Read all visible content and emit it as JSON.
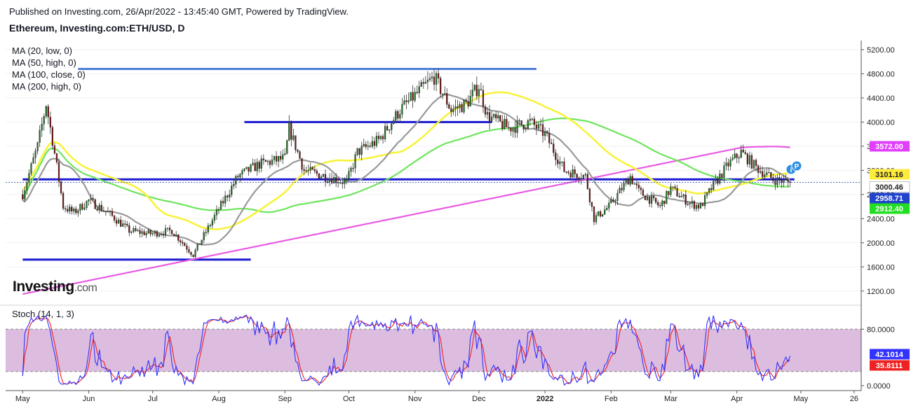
{
  "header": {
    "published": "Published on Investing.com, 26/Apr/2022 - 13:45:40 GMT, Powered by TradingView.",
    "symbol": "Ethereum, Investing.com:ETH/USD, D"
  },
  "indicators": {
    "ma1": "MA (20, low, 0)",
    "ma2": "MA (50, high, 0)",
    "ma3": "MA (100, close, 0)",
    "ma4": "MA (200, high, 0)",
    "stoch": "Stoch (14, 1, 3)"
  },
  "logo": {
    "name": "Investing",
    "suffix": ".com"
  },
  "chart_data": {
    "type": "candlestick",
    "x_tick_labels": [
      "May",
      "Jun",
      "Jul",
      "Aug",
      "Sep",
      "Oct",
      "Nov",
      "Dec",
      "2022",
      "Feb",
      "Mar",
      "Apr",
      "May",
      "26"
    ],
    "price_axis": {
      "ticks": [
        1200,
        1600,
        2000,
        2400,
        2800,
        3200,
        3600,
        4000,
        4400,
        4800,
        5200
      ],
      "tick_labels": [
        "1200.00",
        "1600.00",
        "2000.00",
        "2400.00",
        "2800.00",
        "3200.00",
        "3600.00",
        "4000.00",
        "4400.00",
        "4800.00",
        "5200.00"
      ],
      "range": [
        1000,
        5350
      ]
    },
    "price_series_approx": [
      [
        "2021-05-01",
        2800
      ],
      [
        "2021-05-08",
        3600
      ],
      [
        "2021-05-12",
        4300
      ],
      [
        "2021-05-15",
        3700
      ],
      [
        "2021-05-20",
        2600
      ],
      [
        "2021-05-25",
        2500
      ],
      [
        "2021-06-01",
        2700
      ],
      [
        "2021-06-10",
        2500
      ],
      [
        "2021-06-20",
        2200
      ],
      [
        "2021-06-30",
        2150
      ],
      [
        "2021-07-10",
        2200
      ],
      [
        "2021-07-20",
        1800
      ],
      [
        "2021-07-31",
        2500
      ],
      [
        "2021-08-10",
        3100
      ],
      [
        "2021-08-20",
        3300
      ],
      [
        "2021-09-01",
        3400
      ],
      [
        "2021-09-03",
        3900
      ],
      [
        "2021-09-10",
        3200
      ],
      [
        "2021-09-20",
        3100
      ],
      [
        "2021-09-30",
        3000
      ],
      [
        "2021-10-05",
        3500
      ],
      [
        "2021-10-15",
        3700
      ],
      [
        "2021-10-25",
        4200
      ],
      [
        "2021-11-10",
        4750
      ],
      [
        "2021-11-18",
        4200
      ],
      [
        "2021-11-25",
        4300
      ],
      [
        "2021-12-01",
        4600
      ],
      [
        "2021-12-05",
        4100
      ],
      [
        "2021-12-15",
        3900
      ],
      [
        "2021-12-25",
        4000
      ],
      [
        "2022-01-01",
        3800
      ],
      [
        "2022-01-10",
        3200
      ],
      [
        "2022-01-20",
        3100
      ],
      [
        "2022-01-24",
        2400
      ],
      [
        "2022-01-31",
        2600
      ],
      [
        "2022-02-10",
        3100
      ],
      [
        "2022-02-14",
        2850
      ],
      [
        "2022-02-24",
        2600
      ],
      [
        "2022-03-01",
        2900
      ],
      [
        "2022-03-10",
        2650
      ],
      [
        "2022-03-15",
        2600
      ],
      [
        "2022-03-20",
        2900
      ],
      [
        "2022-03-28",
        3300
      ],
      [
        "2022-04-03",
        3500
      ],
      [
        "2022-04-10",
        3250
      ],
      [
        "2022-04-18",
        3050
      ],
      [
        "2022-04-26",
        3000
      ]
    ],
    "moving_averages": [
      {
        "name": "MA (20, low, 0)",
        "color": "#999999"
      },
      {
        "name": "MA (50, high, 0)",
        "color": "#f7f33c"
      },
      {
        "name": "MA (100, close, 0)",
        "color": "#6ee55d"
      },
      {
        "name": "MA (200, high, 0)",
        "color": "#e85ae3"
      }
    ],
    "horizontal_lines": [
      {
        "value": 4880,
        "from": "2021-05-27",
        "to": "2021-12-28",
        "color": "#4a7fd8"
      },
      {
        "value": 4000,
        "from": "2021-08-13",
        "to": "2021-12-07",
        "color": "#1a1ad0"
      },
      {
        "value": 3050,
        "from": "2021-05-01",
        "to": "2022-04-28",
        "color": "#1a1ad0"
      },
      {
        "value": 1720,
        "from": "2021-05-01",
        "to": "2021-08-16",
        "color": "#1a1ad0"
      }
    ],
    "price_labels": [
      {
        "value": 3572.0,
        "text": "3572.00",
        "color": "#e040fb"
      },
      {
        "value": 3101.16,
        "text": "3101.16",
        "color": "#ffeb3b"
      },
      {
        "value": 3000.46,
        "text": "3000.46",
        "color": "#ffffff"
      },
      {
        "value": 2958.71,
        "text": "2958.71",
        "color": "#2244cc"
      },
      {
        "value": 2912.4,
        "text": "2912.40",
        "color": "#22dd22"
      }
    ],
    "stochastic": {
      "tick_labels": [
        "0.0000",
        "80.0000"
      ],
      "range": [
        -5,
        110
      ],
      "overbought": 80,
      "oversold": 20,
      "k_color": "#3333ff",
      "d_color": "#ee2222",
      "last_k": "42.1014",
      "last_d": "35.8111"
    }
  }
}
